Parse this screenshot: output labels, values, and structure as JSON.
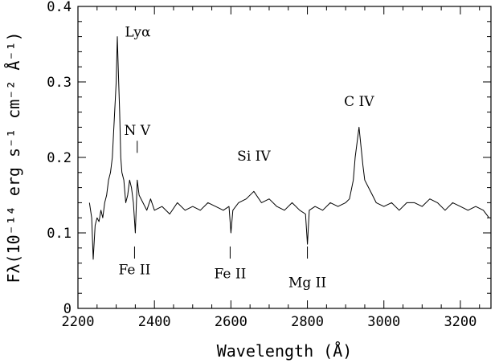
{
  "chart_data": {
    "type": "line",
    "xlabel": "Wavelength (Å)",
    "ylabel": "Fλ(10⁻¹⁴ erg s⁻¹ cm⁻² Å⁻¹)",
    "xlim": [
      2200,
      3280
    ],
    "ylim": [
      0,
      0.4
    ],
    "x_ticks": [
      "2200",
      "2400",
      "2600",
      "2800",
      "3000",
      "3200"
    ],
    "y_ticks": [
      "0",
      "0.1",
      "0.2",
      "0.3",
      "0.4"
    ],
    "grid": false,
    "annotations": [
      {
        "label": "Lyα",
        "wavelength": 2310,
        "y": 0.36
      },
      {
        "label": "N V",
        "wavelength": 2355,
        "y": 0.23
      },
      {
        "label": "Si IV",
        "wavelength": 2660,
        "y": 0.196
      },
      {
        "label": "C IV",
        "wavelength": 2935,
        "y": 0.268
      },
      {
        "label": "Fe II",
        "wavelength": 2348,
        "y": 0.045
      },
      {
        "label": "Fe II",
        "wavelength": 2598,
        "y": 0.04
      },
      {
        "label": "Mg II",
        "wavelength": 2800,
        "y": 0.028
      }
    ],
    "absorption_markers": [
      2348,
      2598,
      2800
    ],
    "emission_markers": [
      2355
    ],
    "series": [
      {
        "x": [
          2230,
          2236,
          2240,
          2245,
          2250,
          2255,
          2260,
          2265,
          2270,
          2275,
          2280,
          2285,
          2290,
          2295,
          2300,
          2303,
          2306,
          2309,
          2312,
          2315,
          2320,
          2325,
          2330,
          2335,
          2340,
          2345,
          2350,
          2355,
          2360,
          2370,
          2380,
          2390,
          2400,
          2420,
          2440,
          2460,
          2480,
          2500,
          2520,
          2540,
          2560,
          2580,
          2595,
          2600,
          2605,
          2620,
          2640,
          2660,
          2680,
          2700,
          2720,
          2740,
          2760,
          2780,
          2795,
          2800,
          2805,
          2820,
          2840,
          2860,
          2880,
          2900,
          2910,
          2920,
          2925,
          2930,
          2935,
          2940,
          2945,
          2950,
          2960,
          2970,
          2980,
          3000,
          3020,
          3040,
          3060,
          3080,
          3100,
          3120,
          3140,
          3160,
          3180,
          3200,
          3220,
          3240,
          3260,
          3275
        ],
        "y": [
          0.14,
          0.12,
          0.065,
          0.11,
          0.12,
          0.115,
          0.13,
          0.12,
          0.14,
          0.15,
          0.17,
          0.18,
          0.2,
          0.25,
          0.3,
          0.36,
          0.31,
          0.26,
          0.2,
          0.18,
          0.17,
          0.14,
          0.15,
          0.17,
          0.16,
          0.14,
          0.1,
          0.17,
          0.15,
          0.14,
          0.13,
          0.145,
          0.13,
          0.135,
          0.125,
          0.14,
          0.13,
          0.135,
          0.13,
          0.14,
          0.135,
          0.13,
          0.135,
          0.1,
          0.13,
          0.14,
          0.145,
          0.155,
          0.14,
          0.145,
          0.135,
          0.13,
          0.14,
          0.13,
          0.125,
          0.085,
          0.13,
          0.135,
          0.13,
          0.14,
          0.135,
          0.14,
          0.145,
          0.17,
          0.2,
          0.22,
          0.24,
          0.215,
          0.19,
          0.17,
          0.16,
          0.15,
          0.14,
          0.135,
          0.14,
          0.13,
          0.14,
          0.14,
          0.135,
          0.145,
          0.14,
          0.13,
          0.14,
          0.135,
          0.13,
          0.135,
          0.13,
          0.12
        ]
      }
    ]
  }
}
